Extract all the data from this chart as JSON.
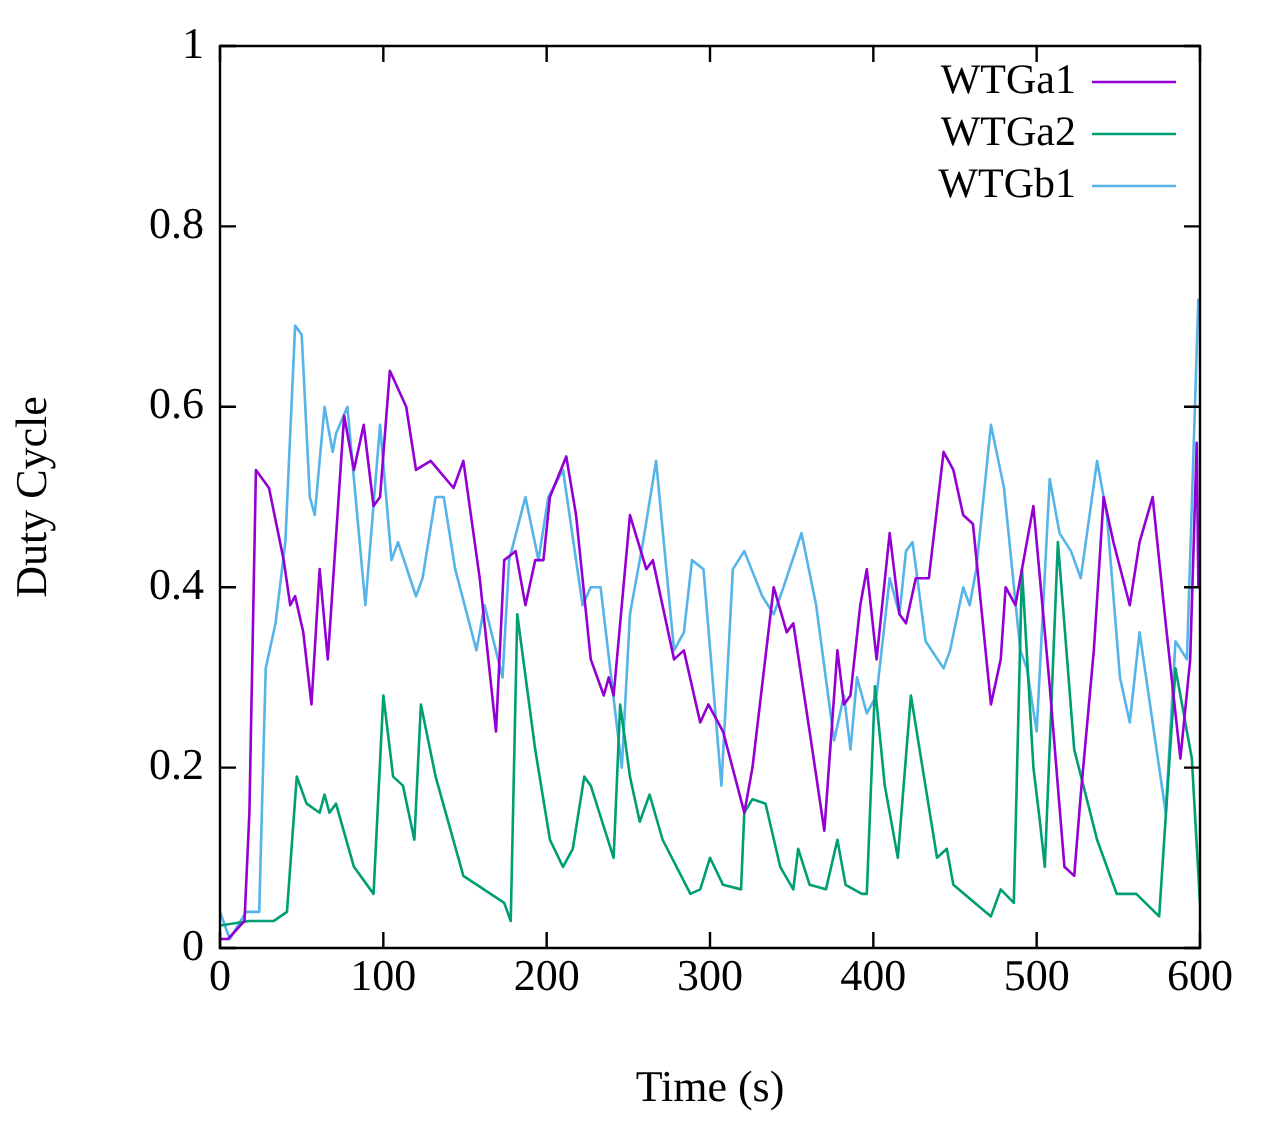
{
  "chart_data": {
    "type": "line",
    "xlabel": "Time (s)",
    "ylabel": "Duty Cycle",
    "xlim": [
      0,
      600
    ],
    "ylim": [
      0,
      1
    ],
    "xticks": [
      0,
      100,
      200,
      300,
      400,
      500,
      600
    ],
    "yticks": [
      0,
      0.2,
      0.4,
      0.6,
      0.8,
      1
    ],
    "legend": "top right",
    "marker": "none",
    "line_style": "solid",
    "series": [
      {
        "name": "WTGa1",
        "color": "#9400d3",
        "x": [
          0,
          5,
          10,
          15,
          18,
          22,
          30,
          39,
          43,
          46,
          51,
          56,
          61,
          66,
          76,
          82,
          88,
          94,
          98,
          104,
          114,
          120,
          129,
          143,
          149,
          159,
          169,
          174,
          181,
          187,
          193,
          198,
          202,
          212,
          218,
          227,
          235,
          238,
          241,
          251,
          261,
          265,
          278,
          284,
          294,
          299,
          308,
          321,
          326,
          339,
          347,
          351,
          361,
          370,
          378,
          382,
          386,
          392,
          396,
          402,
          410,
          416,
          420,
          426,
          434,
          443,
          449,
          455,
          461,
          472,
          478,
          481,
          487,
          498,
          508,
          517,
          523,
          527,
          535,
          541,
          547,
          557,
          563,
          571,
          579,
          588,
          594,
          598,
          599
        ],
        "values": [
          0.01,
          0.01,
          0.02,
          0.03,
          0.15,
          0.53,
          0.51,
          0.43,
          0.38,
          0.39,
          0.35,
          0.27,
          0.42,
          0.32,
          0.59,
          0.53,
          0.58,
          0.49,
          0.5,
          0.64,
          0.6,
          0.53,
          0.54,
          0.51,
          0.54,
          0.41,
          0.24,
          0.43,
          0.44,
          0.38,
          0.43,
          0.43,
          0.5,
          0.545,
          0.48,
          0.32,
          0.28,
          0.3,
          0.28,
          0.48,
          0.42,
          0.43,
          0.32,
          0.33,
          0.25,
          0.27,
          0.24,
          0.15,
          0.2,
          0.4,
          0.35,
          0.36,
          0.24,
          0.13,
          0.33,
          0.27,
          0.28,
          0.38,
          0.42,
          0.32,
          0.46,
          0.37,
          0.36,
          0.41,
          0.41,
          0.55,
          0.53,
          0.48,
          0.47,
          0.27,
          0.32,
          0.4,
          0.38,
          0.49,
          0.29,
          0.09,
          0.08,
          0.17,
          0.33,
          0.5,
          0.45,
          0.38,
          0.45,
          0.5,
          0.36,
          0.21,
          0.32,
          0.56,
          0.4
        ]
      },
      {
        "name": "WTGa2",
        "color": "#009e73",
        "x": [
          0,
          18,
          28,
          33,
          41,
          47,
          53,
          61,
          64,
          67,
          71,
          82,
          94,
          100,
          106,
          112,
          119,
          123,
          132,
          149,
          174,
          178,
          182,
          193,
          202,
          210,
          216,
          223,
          227,
          241,
          245,
          251,
          257,
          263,
          271,
          288,
          294,
          300,
          308,
          319,
          321,
          326,
          334,
          343,
          351,
          354,
          361,
          371,
          378,
          383,
          393,
          396,
          401,
          407,
          415,
          423,
          431,
          439,
          445,
          449,
          472,
          478,
          486,
          491,
          498,
          502,
          505,
          513,
          523,
          537,
          549,
          561,
          575,
          585,
          595,
          600
        ],
        "values": [
          0.025,
          0.03,
          0.03,
          0.03,
          0.04,
          0.19,
          0.16,
          0.15,
          0.17,
          0.15,
          0.16,
          0.09,
          0.06,
          0.28,
          0.19,
          0.18,
          0.12,
          0.27,
          0.19,
          0.08,
          0.05,
          0.03,
          0.37,
          0.22,
          0.12,
          0.09,
          0.11,
          0.19,
          0.18,
          0.1,
          0.27,
          0.19,
          0.14,
          0.17,
          0.12,
          0.06,
          0.065,
          0.1,
          0.07,
          0.065,
          0.15,
          0.165,
          0.16,
          0.09,
          0.065,
          0.11,
          0.07,
          0.065,
          0.12,
          0.07,
          0.06,
          0.06,
          0.29,
          0.18,
          0.1,
          0.28,
          0.19,
          0.1,
          0.11,
          0.07,
          0.035,
          0.065,
          0.05,
          0.42,
          0.2,
          0.14,
          0.09,
          0.45,
          0.22,
          0.12,
          0.06,
          0.06,
          0.035,
          0.31,
          0.21,
          0.05
        ]
      },
      {
        "name": "WTGb1",
        "color": "#56b4e9",
        "x": [
          0,
          6,
          16,
          24,
          28,
          34,
          40,
          46,
          50,
          55,
          58,
          64,
          69,
          71,
          78,
          89,
          98,
          105,
          109,
          120,
          124,
          132,
          137,
          144,
          157,
          162,
          173,
          177,
          187,
          195,
          201,
          210,
          222,
          227,
          233,
          246,
          251,
          259,
          267,
          278,
          284,
          289,
          296,
          307,
          314,
          321,
          332,
          339,
          345,
          356,
          365,
          376,
          382,
          386,
          390,
          396,
          402,
          410,
          416,
          420,
          424,
          432,
          443,
          447,
          455,
          459,
          463,
          472,
          480,
          490,
          494,
          500,
          508,
          514,
          521,
          527,
          537,
          543,
          551,
          557,
          563,
          571,
          579,
          585,
          592,
          599
        ],
        "values": [
          0.04,
          0.01,
          0.04,
          0.04,
          0.31,
          0.36,
          0.45,
          0.69,
          0.68,
          0.5,
          0.48,
          0.6,
          0.55,
          0.57,
          0.6,
          0.38,
          0.58,
          0.43,
          0.45,
          0.39,
          0.41,
          0.5,
          0.5,
          0.42,
          0.33,
          0.38,
          0.3,
          0.43,
          0.5,
          0.43,
          0.5,
          0.53,
          0.38,
          0.4,
          0.4,
          0.2,
          0.37,
          0.45,
          0.54,
          0.33,
          0.35,
          0.43,
          0.42,
          0.18,
          0.42,
          0.44,
          0.39,
          0.37,
          0.4,
          0.46,
          0.38,
          0.23,
          0.28,
          0.22,
          0.3,
          0.26,
          0.28,
          0.41,
          0.37,
          0.44,
          0.45,
          0.34,
          0.31,
          0.33,
          0.4,
          0.38,
          0.42,
          0.58,
          0.51,
          0.33,
          0.31,
          0.24,
          0.52,
          0.46,
          0.44,
          0.41,
          0.54,
          0.48,
          0.3,
          0.25,
          0.35,
          0.25,
          0.15,
          0.34,
          0.32,
          0.72
        ]
      }
    ]
  }
}
